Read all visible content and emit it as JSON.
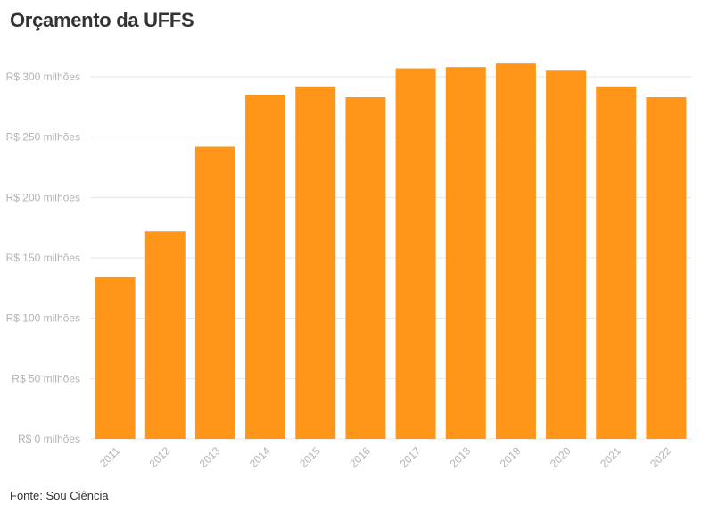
{
  "title": "Orçamento da UFFS",
  "source": "Fonte: Sou Ciência",
  "colors": {
    "bar": "#FF9519",
    "grid": "#e6e6e6",
    "axis_text": "#b3b3b3"
  },
  "chart_data": {
    "type": "bar",
    "title": "Orçamento da UFFS",
    "categories": [
      "2011",
      "2012",
      "2013",
      "2014",
      "2015",
      "2016",
      "2017",
      "2018",
      "2019",
      "2020",
      "2021",
      "2022"
    ],
    "values": [
      134,
      172,
      242,
      285,
      292,
      283,
      307,
      308,
      311,
      305,
      292,
      283
    ],
    "unit": "R$ milhões",
    "ylim": [
      0,
      300
    ],
    "yticks": [
      0,
      50,
      100,
      150,
      200,
      250,
      300
    ],
    "ytick_labels": [
      "R$ 0 milhões",
      "R$ 50 milhões",
      "R$ 100 milhões",
      "R$ 150 milhões",
      "R$ 200 milhões",
      "R$ 250 milhões",
      "R$ 300 milhões"
    ],
    "grid": true,
    "legend": "none"
  }
}
